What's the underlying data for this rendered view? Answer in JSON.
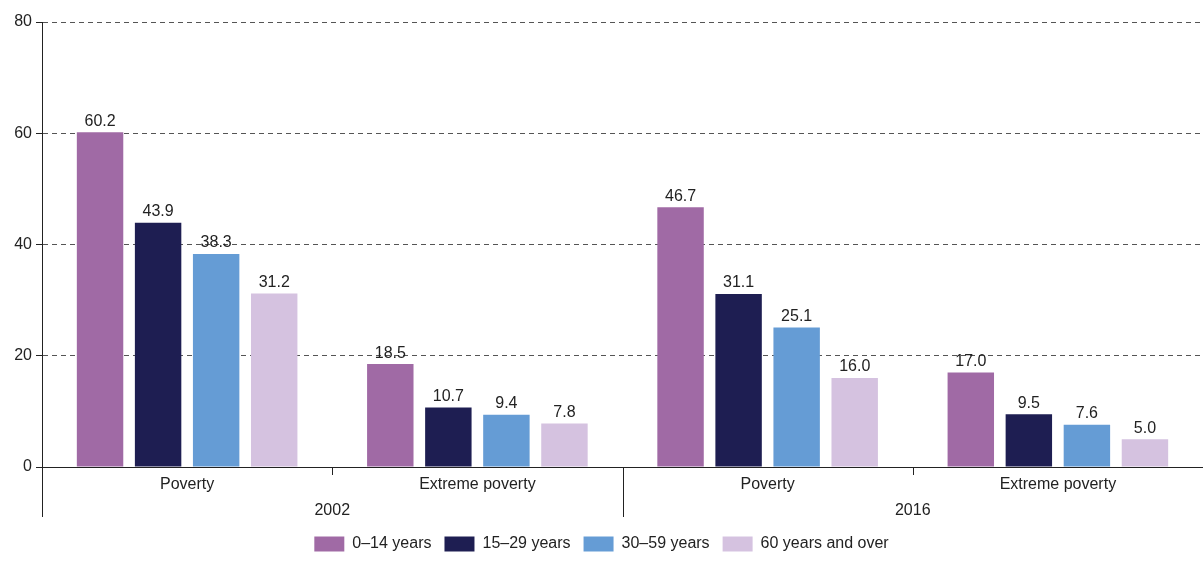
{
  "chart_data": {
    "type": "bar",
    "categories": [
      "Poverty",
      "Extreme poverty",
      "Poverty",
      "Extreme poverty"
    ],
    "series": [
      {
        "name": "0–14 years",
        "color": "#a06aa5",
        "values": [
          60.2,
          18.5,
          46.7,
          17.0
        ],
        "value_labels": [
          "60.2",
          "18.5",
          "46.7",
          "17.0"
        ]
      },
      {
        "name": "15–29 years",
        "color": "#1e1e52",
        "values": [
          43.9,
          10.7,
          31.1,
          9.5
        ],
        "value_labels": [
          "43.9",
          "10.7",
          "31.1",
          "9.5"
        ]
      },
      {
        "name": "30–59 years",
        "color": "#659cd5",
        "values": [
          38.3,
          9.4,
          25.1,
          7.6
        ],
        "value_labels": [
          "38.3",
          "9.4",
          "25.1",
          "7.6"
        ]
      },
      {
        "name": "60 years and over",
        "color": "#d5c2e0",
        "values": [
          31.2,
          7.8,
          16.0,
          5.0
        ],
        "value_labels": [
          "31.2",
          "7.8",
          "16.0",
          "5.0"
        ]
      }
    ],
    "ylim": [
      0,
      80
    ],
    "yticks": [
      0,
      20,
      40,
      60,
      80
    ],
    "grid": "y",
    "legend": "bottom",
    "annotations": [
      "2002",
      "2016"
    ]
  }
}
